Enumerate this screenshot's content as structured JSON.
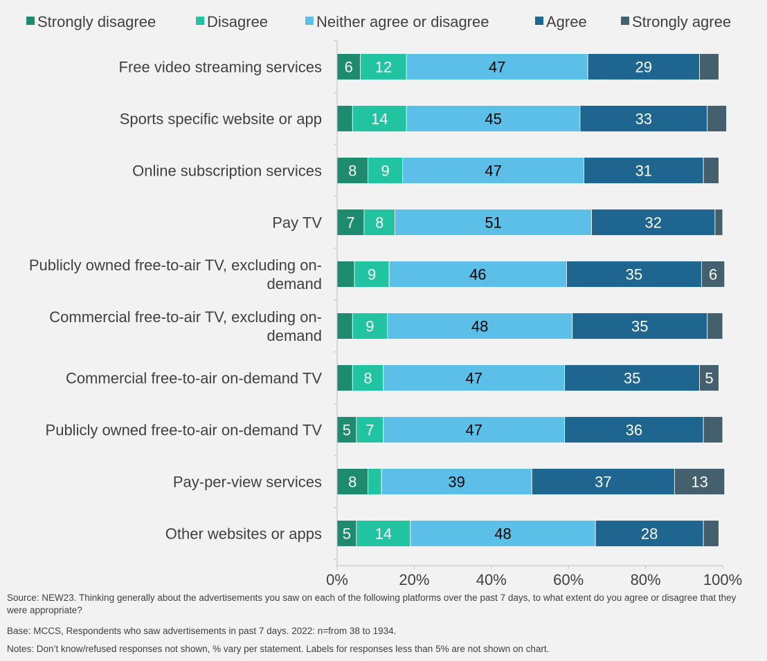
{
  "chart_data": {
    "type": "bar",
    "orientation": "horizontal",
    "stacked": true,
    "categories": [
      "Free video streaming services",
      "Sports specific website or app",
      "Online subscription services",
      "Pay TV",
      "Publicly owned free-to-air TV, excluding on-demand",
      "Commercial free-to-air TV, excluding on-demand",
      "Commercial free-to-air on-demand TV",
      "Publicly owned free-to-air on-demand TV",
      "Pay-per-view services",
      "Other websites or apps"
    ],
    "category_lines": [
      [
        "Free video streaming services"
      ],
      [
        "Sports specific website or app"
      ],
      [
        "Online subscription services"
      ],
      [
        "Pay TV"
      ],
      [
        "Publicly owned free-to-air TV, excluding on-",
        "demand"
      ],
      [
        "Commercial free-to-air TV, excluding on-",
        "demand"
      ],
      [
        "Commercial free-to-air on-demand TV"
      ],
      [
        "Publicly owned free-to-air on-demand TV"
      ],
      [
        "Pay-per-view services"
      ],
      [
        "Other websites or apps"
      ]
    ],
    "series": [
      {
        "name": "Strongly disagree",
        "color": "#1e8a6e",
        "values": [
          6,
          4,
          8,
          7,
          4.5,
          4,
          4,
          5,
          8,
          5
        ]
      },
      {
        "name": "Disagree",
        "color": "#22c3a0",
        "values": [
          12,
          14,
          9,
          8,
          9,
          9,
          8,
          7,
          3.5,
          14
        ]
      },
      {
        "name": "Neither agree or disagree",
        "color": "#5bbfe7",
        "values": [
          47,
          45,
          47,
          51,
          46,
          48,
          47,
          47,
          39,
          48
        ]
      },
      {
        "name": "Agree",
        "color": "#1e6690",
        "values": [
          29,
          33,
          31,
          32,
          35,
          35,
          35,
          36,
          37,
          28
        ]
      },
      {
        "name": "Strongly agree",
        "color": "#44606f",
        "values": [
          5,
          5,
          4,
          2,
          6,
          4,
          5,
          5,
          13,
          4
        ]
      }
    ],
    "data_labels": [
      [
        "6",
        "",
        "8",
        "7",
        "",
        "",
        "",
        "5",
        "8",
        "5"
      ],
      [
        "12",
        "14",
        "9",
        "8",
        "9",
        "9",
        "8",
        "7",
        "",
        "14"
      ],
      [
        "47",
        "45",
        "47",
        "51",
        "46",
        "48",
        "47",
        "47",
        "39",
        "48"
      ],
      [
        "29",
        "33",
        "31",
        "32",
        "35",
        "35",
        "35",
        "36",
        "37",
        "28"
      ],
      [
        "",
        "",
        "",
        "",
        "6",
        "",
        "5",
        "",
        "13",
        ""
      ]
    ],
    "x_ticks": [
      "0%",
      "20%",
      "40%",
      "60%",
      "80%",
      "100%"
    ],
    "xlim": [
      0,
      100
    ],
    "legend_position": "top",
    "grid": false
  },
  "footnotes": {
    "source": "Source: NEW23. Thinking generally about the advertisements you saw on each of the following platforms over the past 7 days, to what extent do you agree or disagree that they were appropriate?",
    "base": "Base: MCCS, Respondents who saw advertisements in past 7 days. 2022: n=from 38 to 1934.",
    "notes": "Notes: Don’t know/refused responses not shown, % vary per statement. Labels for responses less than 5% are not shown on chart."
  }
}
